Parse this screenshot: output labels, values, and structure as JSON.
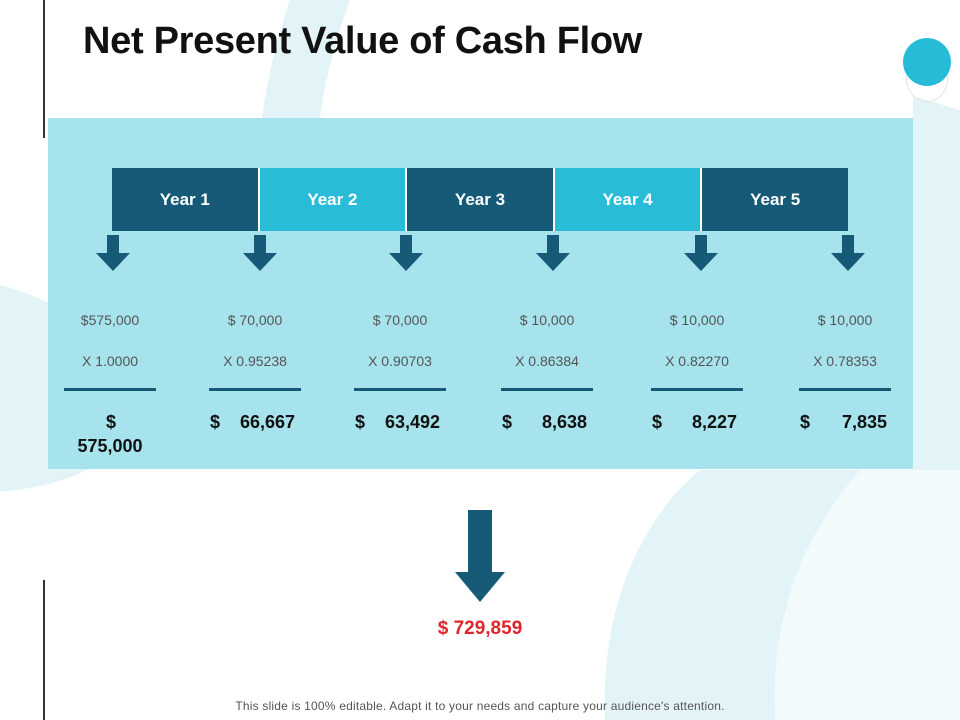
{
  "slide": {
    "title": "Net Present Value of Cash Flow",
    "footer": "This slide is 100% editable. Adapt it to your needs and capture your audience's attention."
  },
  "years": [
    {
      "label": "Year 1"
    },
    {
      "label": "Year 2"
    },
    {
      "label": "Year 3"
    },
    {
      "label": "Year 4"
    },
    {
      "label": "Year 5"
    }
  ],
  "columns": [
    {
      "amount": "$575,000",
      "factor": "X 1.0000",
      "dollar": "$",
      "value": "575,000"
    },
    {
      "amount": "$  70,000",
      "factor": "X 0.95238",
      "dollar": "$",
      "value": "66,667"
    },
    {
      "amount": "$  70,000",
      "factor": "X 0.90703",
      "dollar": "$",
      "value": "63,492"
    },
    {
      "amount": "$  10,000",
      "factor": "X 0.86384",
      "dollar": "$",
      "value": "8,638"
    },
    {
      "amount": "$  10,000",
      "factor": "X 0.82270",
      "dollar": "$",
      "value": "8,227"
    },
    {
      "amount": "$  10,000",
      "factor": "X 0.78353",
      "dollar": "$",
      "value": "7,835"
    }
  ],
  "total": "$ 729,859",
  "colors": {
    "dark_teal": "#175a78",
    "light_teal": "#29bcd8",
    "panel": "#a6e3ec",
    "total_red": "#e0252b"
  },
  "icons": {
    "small_arrow": "arrow-down-icon",
    "big_arrow": "arrow-down-icon",
    "circle": "circle-decoration"
  }
}
